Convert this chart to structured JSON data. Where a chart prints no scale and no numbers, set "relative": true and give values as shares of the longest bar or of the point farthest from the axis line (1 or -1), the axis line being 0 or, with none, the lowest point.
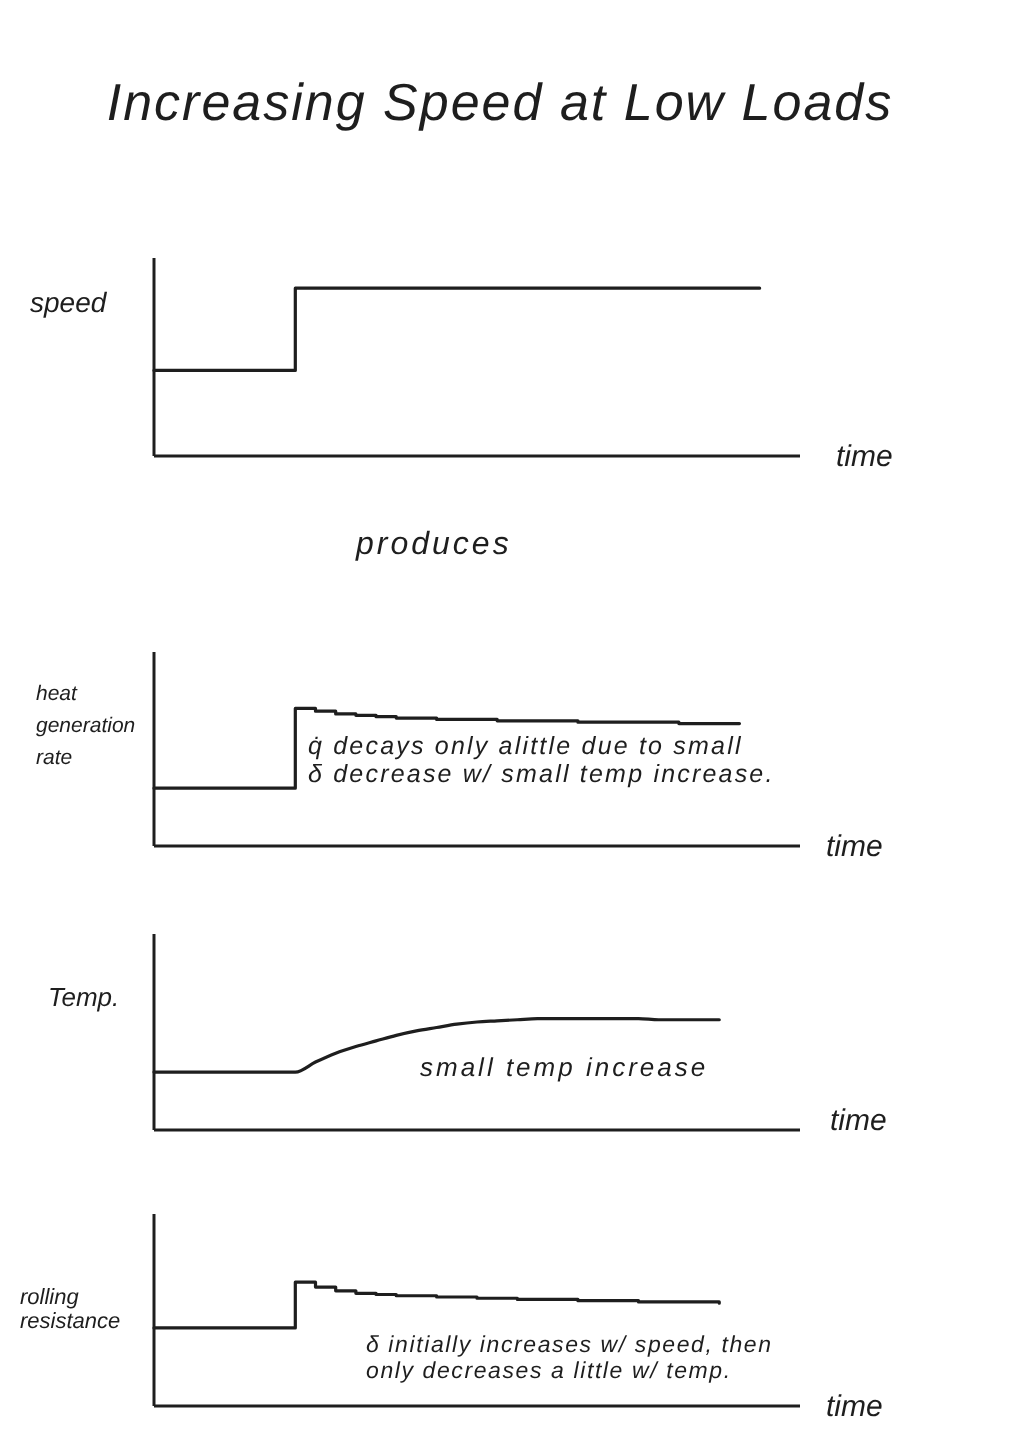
{
  "chart_data": [
    {
      "type": "step",
      "title": "Increasing Speed at Low Loads",
      "xlabel": "time",
      "ylabel": "speed",
      "relative": true,
      "color": "#1e1e1e",
      "categories": [
        null,
        null,
        null,
        null,
        null,
        null,
        null,
        null,
        null,
        null,
        null,
        null,
        null,
        null,
        null,
        null,
        null,
        null,
        null,
        null,
        null,
        null,
        null,
        null,
        null,
        null,
        null,
        null,
        null,
        null,
        null,
        null,
        null
      ],
      "values": [
        0.51,
        0.51,
        0.51,
        0.51,
        0.51,
        0.51,
        0.51,
        1,
        1,
        1,
        1,
        1,
        1,
        1,
        1,
        1,
        1,
        1,
        1,
        1,
        1,
        1,
        1,
        1,
        1,
        1,
        1,
        1,
        1,
        1,
        1,
        null,
        null
      ]
    },
    {
      "type": "step",
      "xlabel": "time",
      "ylabel": "heat\ngeneration\nrate",
      "relative": true,
      "color": "#1e1e1e",
      "annotations": [
        "produces",
        "q̇ decays only alittle due to small\nδ decrease w/ small temp increase."
      ],
      "categories": [
        null,
        null,
        null,
        null,
        null,
        null,
        null,
        null,
        null,
        null,
        null,
        null,
        null,
        null,
        null,
        null,
        null,
        null,
        null,
        null,
        null,
        null,
        null,
        null,
        null,
        null,
        null,
        null,
        null,
        null,
        null,
        null,
        null
      ],
      "values": [
        0.42,
        0.42,
        0.42,
        0.42,
        0.42,
        0.42,
        0.42,
        1,
        0.98,
        0.96,
        0.95,
        0.94,
        0.93,
        0.93,
        0.92,
        0.92,
        0.92,
        0.91,
        0.91,
        0.91,
        0.91,
        0.9,
        0.9,
        0.9,
        0.9,
        0.9,
        0.89,
        0.89,
        0.89,
        0.89,
        null,
        null,
        null
      ]
    },
    {
      "type": "line",
      "xlabel": "time",
      "ylabel": "Temp.",
      "relative": true,
      "color": "#1e1e1e",
      "annotations": [
        "small temp increase"
      ],
      "categories": [
        null,
        null,
        null,
        null,
        null,
        null,
        null,
        null,
        null,
        null,
        null,
        null,
        null,
        null,
        null,
        null,
        null,
        null,
        null,
        null,
        null,
        null,
        null,
        null,
        null,
        null,
        null,
        null,
        null,
        null,
        null,
        null,
        null
      ],
      "values": [
        0.52,
        0.52,
        0.52,
        0.52,
        0.52,
        0.52,
        0.52,
        0.52,
        0.61,
        0.69,
        0.75,
        0.8,
        0.85,
        0.89,
        0.92,
        0.95,
        0.97,
        0.98,
        0.99,
        1,
        1,
        1,
        1,
        1,
        1,
        0.99,
        0.99,
        0.99,
        0.99,
        null,
        null,
        null,
        null
      ]
    },
    {
      "type": "step",
      "xlabel": "time",
      "ylabel": "rolling\nresistance",
      "relative": true,
      "color": "#1e1e1e",
      "annotations": [
        "δ initially increases w/ speed, then\nonly decreases a little w/ temp."
      ],
      "categories": [
        null,
        null,
        null,
        null,
        null,
        null,
        null,
        null,
        null,
        null,
        null,
        null,
        null,
        null,
        null,
        null,
        null,
        null,
        null,
        null,
        null,
        null,
        null,
        null,
        null,
        null,
        null,
        null,
        null,
        null,
        null,
        null,
        null
      ],
      "values": [
        0.63,
        0.63,
        0.63,
        0.63,
        0.63,
        0.63,
        0.63,
        1,
        0.96,
        0.93,
        0.91,
        0.9,
        0.89,
        0.89,
        0.88,
        0.88,
        0.87,
        0.87,
        0.86,
        0.86,
        0.86,
        0.85,
        0.85,
        0.85,
        0.84,
        0.84,
        0.84,
        0.84,
        0.83,
        null,
        null,
        null,
        null
      ]
    }
  ]
}
